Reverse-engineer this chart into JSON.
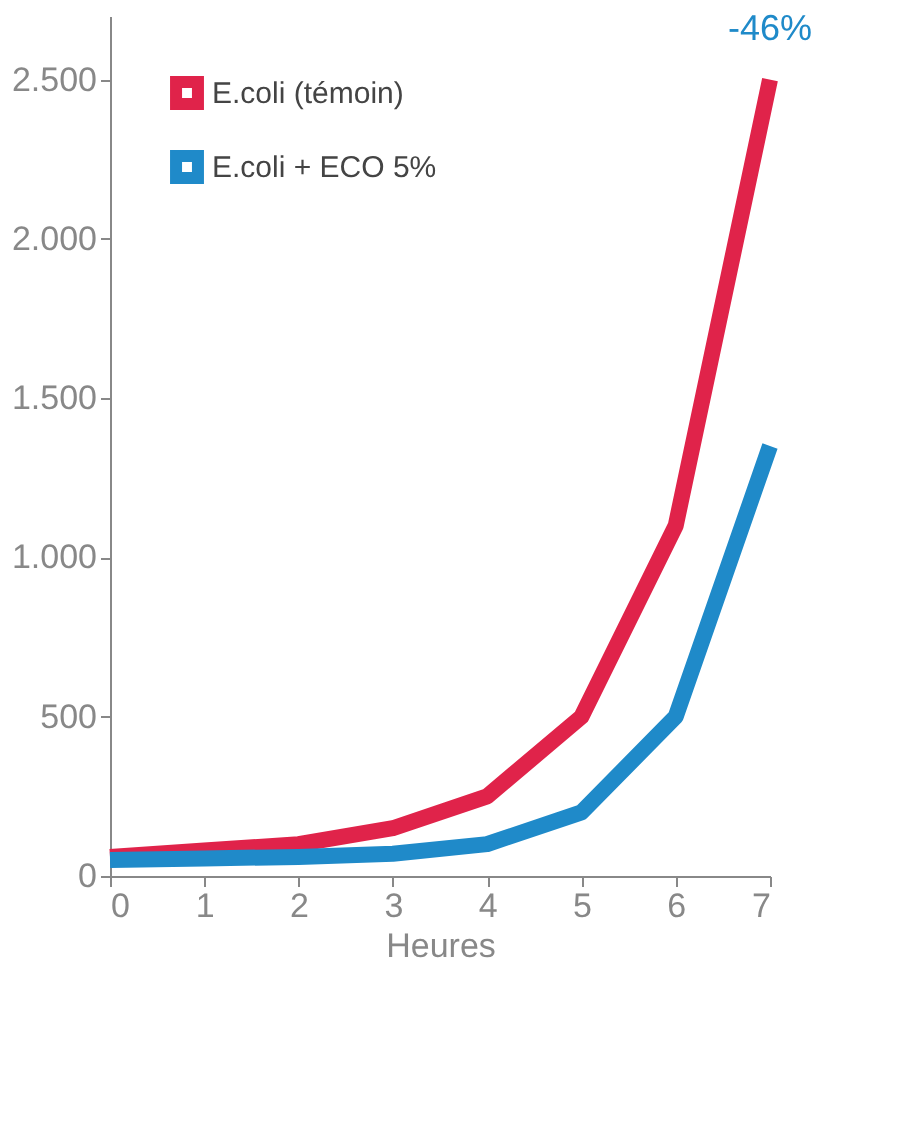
{
  "chart_data": {
    "type": "line",
    "xlabel": "Heures",
    "x": [
      0,
      1,
      2,
      3,
      4,
      5,
      6,
      7
    ],
    "series": [
      {
        "name": "E.coli (témoin)",
        "color": "#e0234a",
        "values": [
          60,
          80,
          100,
          150,
          250,
          500,
          1100,
          2500
        ]
      },
      {
        "name": "E.coli + ECO 5%",
        "color": "#1f8ac9",
        "values": [
          50,
          55,
          60,
          70,
          100,
          200,
          500,
          1350
        ]
      }
    ],
    "xlim": [
      0,
      7
    ],
    "xticks": [
      0,
      1,
      2,
      3,
      4,
      5,
      6,
      7
    ],
    "ylim": [
      0,
      2700
    ],
    "yticks": [
      0,
      500,
      {
        "value": 1000,
        "label": "1.000"
      },
      {
        "value": 1500,
        "label": "1.500"
      },
      {
        "value": 2000,
        "label": "2.000"
      },
      {
        "value": 2500,
        "label": "2.500"
      }
    ],
    "annotations": [
      {
        "text": "-46%",
        "x": 7,
        "y": 2500
      }
    ],
    "grid": false,
    "legend": "top left",
    "marker": "none",
    "line_style": "solid"
  }
}
